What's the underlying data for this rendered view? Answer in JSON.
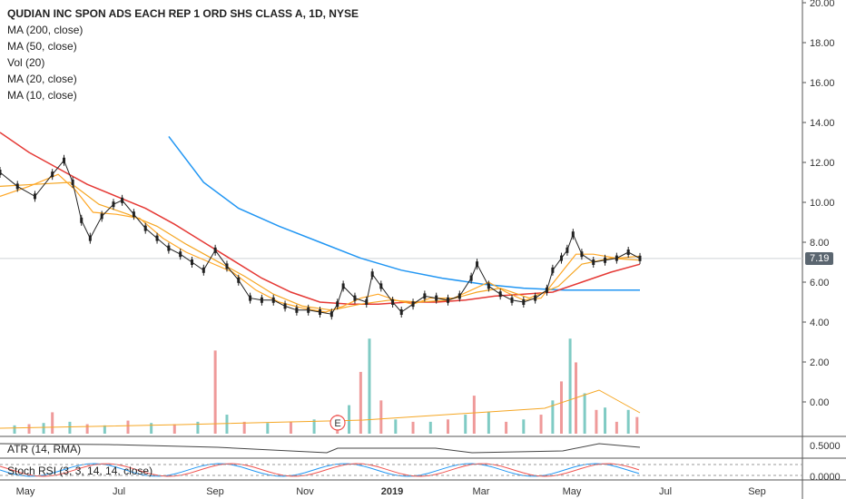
{
  "legend": {
    "title": "QUDIAN INC SPON ADS EACH REP 1 ORD SHS CLASS A, 1D, NYSE",
    "ma200": "MA (200, close)",
    "ma50": "MA (50, close)",
    "vol": "Vol (20)",
    "ma20": "MA (20, close)",
    "ma10": "MA (10, close)"
  },
  "panes": {
    "atr_label": "ATR (14, RMA)",
    "stoch_label": "Stoch RSI (3, 3, 14, 14, close)",
    "atr_tick": "0.5000",
    "stoch_tick": "0.0000"
  },
  "last_price": "7.19",
  "earnings_marker": "E",
  "colors": {
    "up": "#26a69a",
    "down": "#ef5350",
    "ma200": "#2196f3",
    "ma50": "#e53935",
    "ma20": "#f5a623",
    "ma10": "#ffa726",
    "vol_up": "#80cbc4",
    "vol_down": "#ef9a9a"
  },
  "chart_data": {
    "type": "line",
    "title": "QUDIAN INC SPON ADS EACH REP 1 ORD SHS CLASS A, 1D, NYSE",
    "x_ticks": [
      "May",
      "Jul",
      "Sep",
      "Nov",
      "2019",
      "Mar",
      "May",
      "Jul",
      "Sep"
    ],
    "y_ticks": [
      "20.00",
      "18.00",
      "16.00",
      "14.00",
      "12.00",
      "10.00",
      "8.00",
      "6.00",
      "4.00",
      "2.00",
      "0.00"
    ],
    "ylim": [
      -0.8,
      20.0
    ],
    "last_price": 7.19,
    "price_points": [
      [
        0,
        11.5
      ],
      [
        6,
        10.8
      ],
      [
        12,
        10.3
      ],
      [
        18,
        11.4
      ],
      [
        22,
        12.1
      ],
      [
        25,
        11.0
      ],
      [
        28,
        9.1
      ],
      [
        31,
        8.2
      ],
      [
        35,
        9.3
      ],
      [
        39,
        9.9
      ],
      [
        42,
        10.1
      ],
      [
        46,
        9.4
      ],
      [
        50,
        8.7
      ],
      [
        54,
        8.2
      ],
      [
        58,
        7.7
      ],
      [
        62,
        7.4
      ],
      [
        66,
        7.0
      ],
      [
        70,
        6.6
      ],
      [
        74,
        7.6
      ],
      [
        78,
        6.8
      ],
      [
        82,
        6.1
      ],
      [
        86,
        5.2
      ],
      [
        90,
        5.1
      ],
      [
        94,
        5.1
      ],
      [
        98,
        4.8
      ],
      [
        102,
        4.6
      ],
      [
        106,
        4.6
      ],
      [
        110,
        4.5
      ],
      [
        114,
        4.4
      ],
      [
        116,
        4.9
      ],
      [
        118,
        5.8
      ],
      [
        122,
        5.2
      ],
      [
        126,
        5.0
      ],
      [
        128,
        6.4
      ],
      [
        131,
        5.8
      ],
      [
        135,
        5.0
      ],
      [
        138,
        4.5
      ],
      [
        142,
        4.9
      ],
      [
        146,
        5.3
      ],
      [
        150,
        5.2
      ],
      [
        154,
        5.1
      ],
      [
        158,
        5.3
      ],
      [
        162,
        6.2
      ],
      [
        164,
        6.9
      ],
      [
        168,
        5.8
      ],
      [
        172,
        5.4
      ],
      [
        176,
        5.1
      ],
      [
        180,
        5.0
      ],
      [
        184,
        5.2
      ],
      [
        188,
        5.6
      ],
      [
        190,
        6.6
      ],
      [
        193,
        7.2
      ],
      [
        195,
        7.6
      ],
      [
        197,
        8.4
      ],
      [
        200,
        7.4
      ],
      [
        204,
        7.0
      ],
      [
        208,
        7.1
      ],
      [
        212,
        7.2
      ],
      [
        216,
        7.5
      ],
      [
        220,
        7.19
      ]
    ],
    "ma10_points": [
      [
        0,
        10.3
      ],
      [
        10,
        10.8
      ],
      [
        20,
        11.4
      ],
      [
        26,
        10.6
      ],
      [
        32,
        9.5
      ],
      [
        40,
        9.4
      ],
      [
        48,
        9.2
      ],
      [
        56,
        8.2
      ],
      [
        64,
        7.5
      ],
      [
        72,
        7.0
      ],
      [
        80,
        6.5
      ],
      [
        88,
        5.6
      ],
      [
        96,
        5.0
      ],
      [
        104,
        4.7
      ],
      [
        112,
        4.5
      ],
      [
        118,
        4.8
      ],
      [
        124,
        5.2
      ],
      [
        130,
        5.4
      ],
      [
        136,
        5.1
      ],
      [
        142,
        4.9
      ],
      [
        148,
        5.2
      ],
      [
        156,
        5.2
      ],
      [
        162,
        5.6
      ],
      [
        168,
        6.0
      ],
      [
        174,
        5.5
      ],
      [
        180,
        5.1
      ],
      [
        186,
        5.2
      ],
      [
        192,
        6.3
      ],
      [
        198,
        7.4
      ],
      [
        204,
        7.4
      ],
      [
        212,
        7.2
      ],
      [
        220,
        7.3
      ]
    ],
    "ma20_points": [
      [
        0,
        10.8
      ],
      [
        12,
        10.9
      ],
      [
        24,
        11.0
      ],
      [
        34,
        9.9
      ],
      [
        44,
        9.4
      ],
      [
        54,
        8.8
      ],
      [
        64,
        7.9
      ],
      [
        74,
        7.1
      ],
      [
        84,
        6.3
      ],
      [
        94,
        5.4
      ],
      [
        104,
        4.8
      ],
      [
        114,
        4.6
      ],
      [
        124,
        4.9
      ],
      [
        134,
        5.1
      ],
      [
        144,
        5.0
      ],
      [
        154,
        5.1
      ],
      [
        164,
        5.5
      ],
      [
        172,
        5.7
      ],
      [
        182,
        5.2
      ],
      [
        192,
        5.8
      ],
      [
        200,
        6.9
      ],
      [
        210,
        7.2
      ],
      [
        220,
        7.1
      ]
    ],
    "ma50_points": [
      [
        0,
        13.5
      ],
      [
        10,
        12.5
      ],
      [
        20,
        11.7
      ],
      [
        30,
        10.9
      ],
      [
        40,
        10.3
      ],
      [
        50,
        9.7
      ],
      [
        60,
        8.9
      ],
      [
        70,
        8.0
      ],
      [
        80,
        7.1
      ],
      [
        90,
        6.2
      ],
      [
        100,
        5.5
      ],
      [
        110,
        5.0
      ],
      [
        120,
        4.9
      ],
      [
        130,
        4.9
      ],
      [
        140,
        5.0
      ],
      [
        150,
        5.0
      ],
      [
        160,
        5.1
      ],
      [
        170,
        5.3
      ],
      [
        180,
        5.4
      ],
      [
        190,
        5.5
      ],
      [
        200,
        6.0
      ],
      [
        210,
        6.5
      ],
      [
        220,
        6.9
      ]
    ],
    "ma200_points": [
      [
        58,
        13.3
      ],
      [
        70,
        11.0
      ],
      [
        82,
        9.7
      ],
      [
        96,
        8.8
      ],
      [
        110,
        8.0
      ],
      [
        124,
        7.2
      ],
      [
        138,
        6.6
      ],
      [
        152,
        6.2
      ],
      [
        166,
        5.9
      ],
      [
        180,
        5.7
      ],
      [
        194,
        5.6
      ],
      [
        220,
        5.6
      ]
    ],
    "volume_bars": [
      [
        5,
        0.35
      ],
      [
        10,
        0.4
      ],
      [
        15,
        0.45
      ],
      [
        18,
        0.9
      ],
      [
        24,
        0.5
      ],
      [
        30,
        0.4
      ],
      [
        36,
        0.35
      ],
      [
        44,
        0.55
      ],
      [
        52,
        0.45
      ],
      [
        60,
        0.4
      ],
      [
        68,
        0.5
      ],
      [
        74,
        3.5
      ],
      [
        78,
        0.8
      ],
      [
        84,
        0.5
      ],
      [
        92,
        0.45
      ],
      [
        100,
        0.5
      ],
      [
        108,
        0.6
      ],
      [
        116,
        0.8
      ],
      [
        120,
        1.2
      ],
      [
        124,
        2.6
      ],
      [
        127,
        4.0
      ],
      [
        131,
        1.4
      ],
      [
        136,
        0.6
      ],
      [
        142,
        0.5
      ],
      [
        148,
        0.5
      ],
      [
        154,
        0.6
      ],
      [
        160,
        0.8
      ],
      [
        163,
        1.6
      ],
      [
        168,
        0.9
      ],
      [
        174,
        0.5
      ],
      [
        180,
        0.6
      ],
      [
        186,
        0.8
      ],
      [
        190,
        1.4
      ],
      [
        193,
        2.2
      ],
      [
        196,
        4.0
      ],
      [
        198,
        3.0
      ],
      [
        201,
        1.7
      ],
      [
        205,
        1.0
      ],
      [
        208,
        1.1
      ],
      [
        212,
        0.5
      ],
      [
        216,
        1.0
      ],
      [
        219,
        0.7
      ]
    ],
    "stoch_rsi_note": "oscillator pane",
    "atr_range_note": "ATR pane"
  }
}
